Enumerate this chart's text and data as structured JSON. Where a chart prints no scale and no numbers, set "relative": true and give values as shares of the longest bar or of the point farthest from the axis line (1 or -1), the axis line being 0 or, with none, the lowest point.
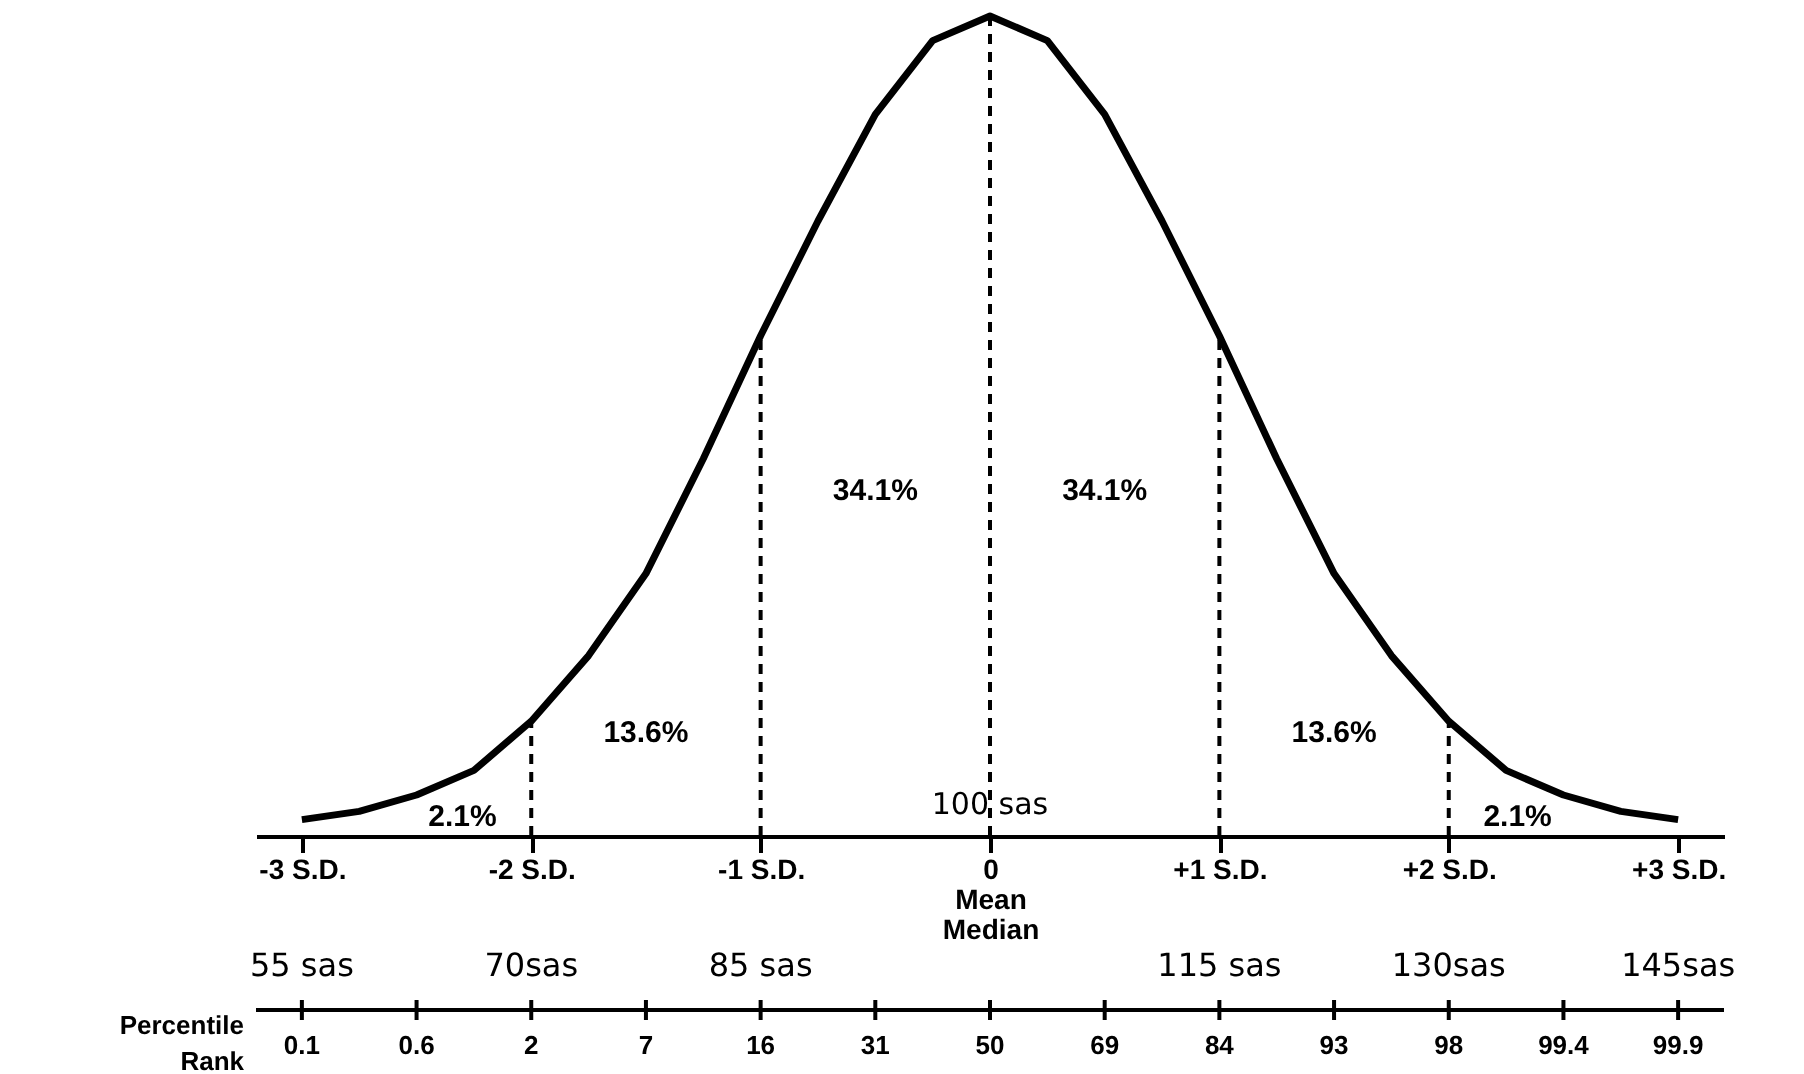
{
  "chart_data": {
    "type": "line",
    "relative": true,
    "x": [
      -3,
      -2.75,
      -2.5,
      -2.25,
      -2,
      -1.75,
      -1.5,
      -1.25,
      -1,
      -0.75,
      -0.5,
      -0.25,
      0,
      0.25,
      0.5,
      0.75,
      1,
      1.25,
      1.5,
      1.75,
      2,
      2.25,
      2.5,
      2.75,
      3
    ],
    "series": [
      {
        "color": "#000000",
        "values": [
          0.02,
          0.03,
          0.05,
          0.08,
          0.14,
          0.22,
          0.32,
          0.46,
          0.61,
          0.75,
          0.88,
          0.97,
          1,
          0.97,
          0.88,
          0.75,
          0.61,
          0.46,
          0.32,
          0.22,
          0.14,
          0.08,
          0.05,
          0.03,
          0.02
        ]
      }
    ],
    "xlim": [
      -3.2,
      3.2
    ],
    "xticks": [
      {
        "value": -3,
        "label": "-3 S.D."
      },
      {
        "value": -2,
        "label": "-2 S.D."
      },
      {
        "value": -1,
        "label": "-1 S.D."
      },
      {
        "value": 0,
        "label": "0\nMean\nMedian"
      },
      {
        "value": 1,
        "label": "+1 S.D."
      },
      {
        "value": 2,
        "label": "+2 S.D."
      },
      {
        "value": 3,
        "label": "+3 S.D."
      }
    ],
    "ref_lines": [
      {
        "axis": "x",
        "value": -2,
        "line_style": "dashed"
      },
      {
        "axis": "x",
        "value": -1,
        "line_style": "dashed"
      },
      {
        "axis": "x",
        "value": 0,
        "line_style": "dashed"
      },
      {
        "axis": "x",
        "value": 1,
        "line_style": "dashed"
      },
      {
        "axis": "x",
        "value": 2,
        "line_style": "dashed"
      }
    ],
    "annotations": [
      "34.1%",
      "34.1%",
      "13.6%",
      "13.6%",
      "2.1%",
      "2.1%",
      "100 sas",
      "55 sas",
      "70sas",
      "85 sas",
      "115 sas",
      "130sas",
      "145sas",
      "Percentile Rank",
      "0.1",
      "0.6",
      "2",
      "7",
      "16",
      "31",
      "50",
      "69",
      "84",
      "93",
      "98",
      "99.4",
      "99.9"
    ],
    "grid": false,
    "marker": "none",
    "line_style": "solid"
  }
}
